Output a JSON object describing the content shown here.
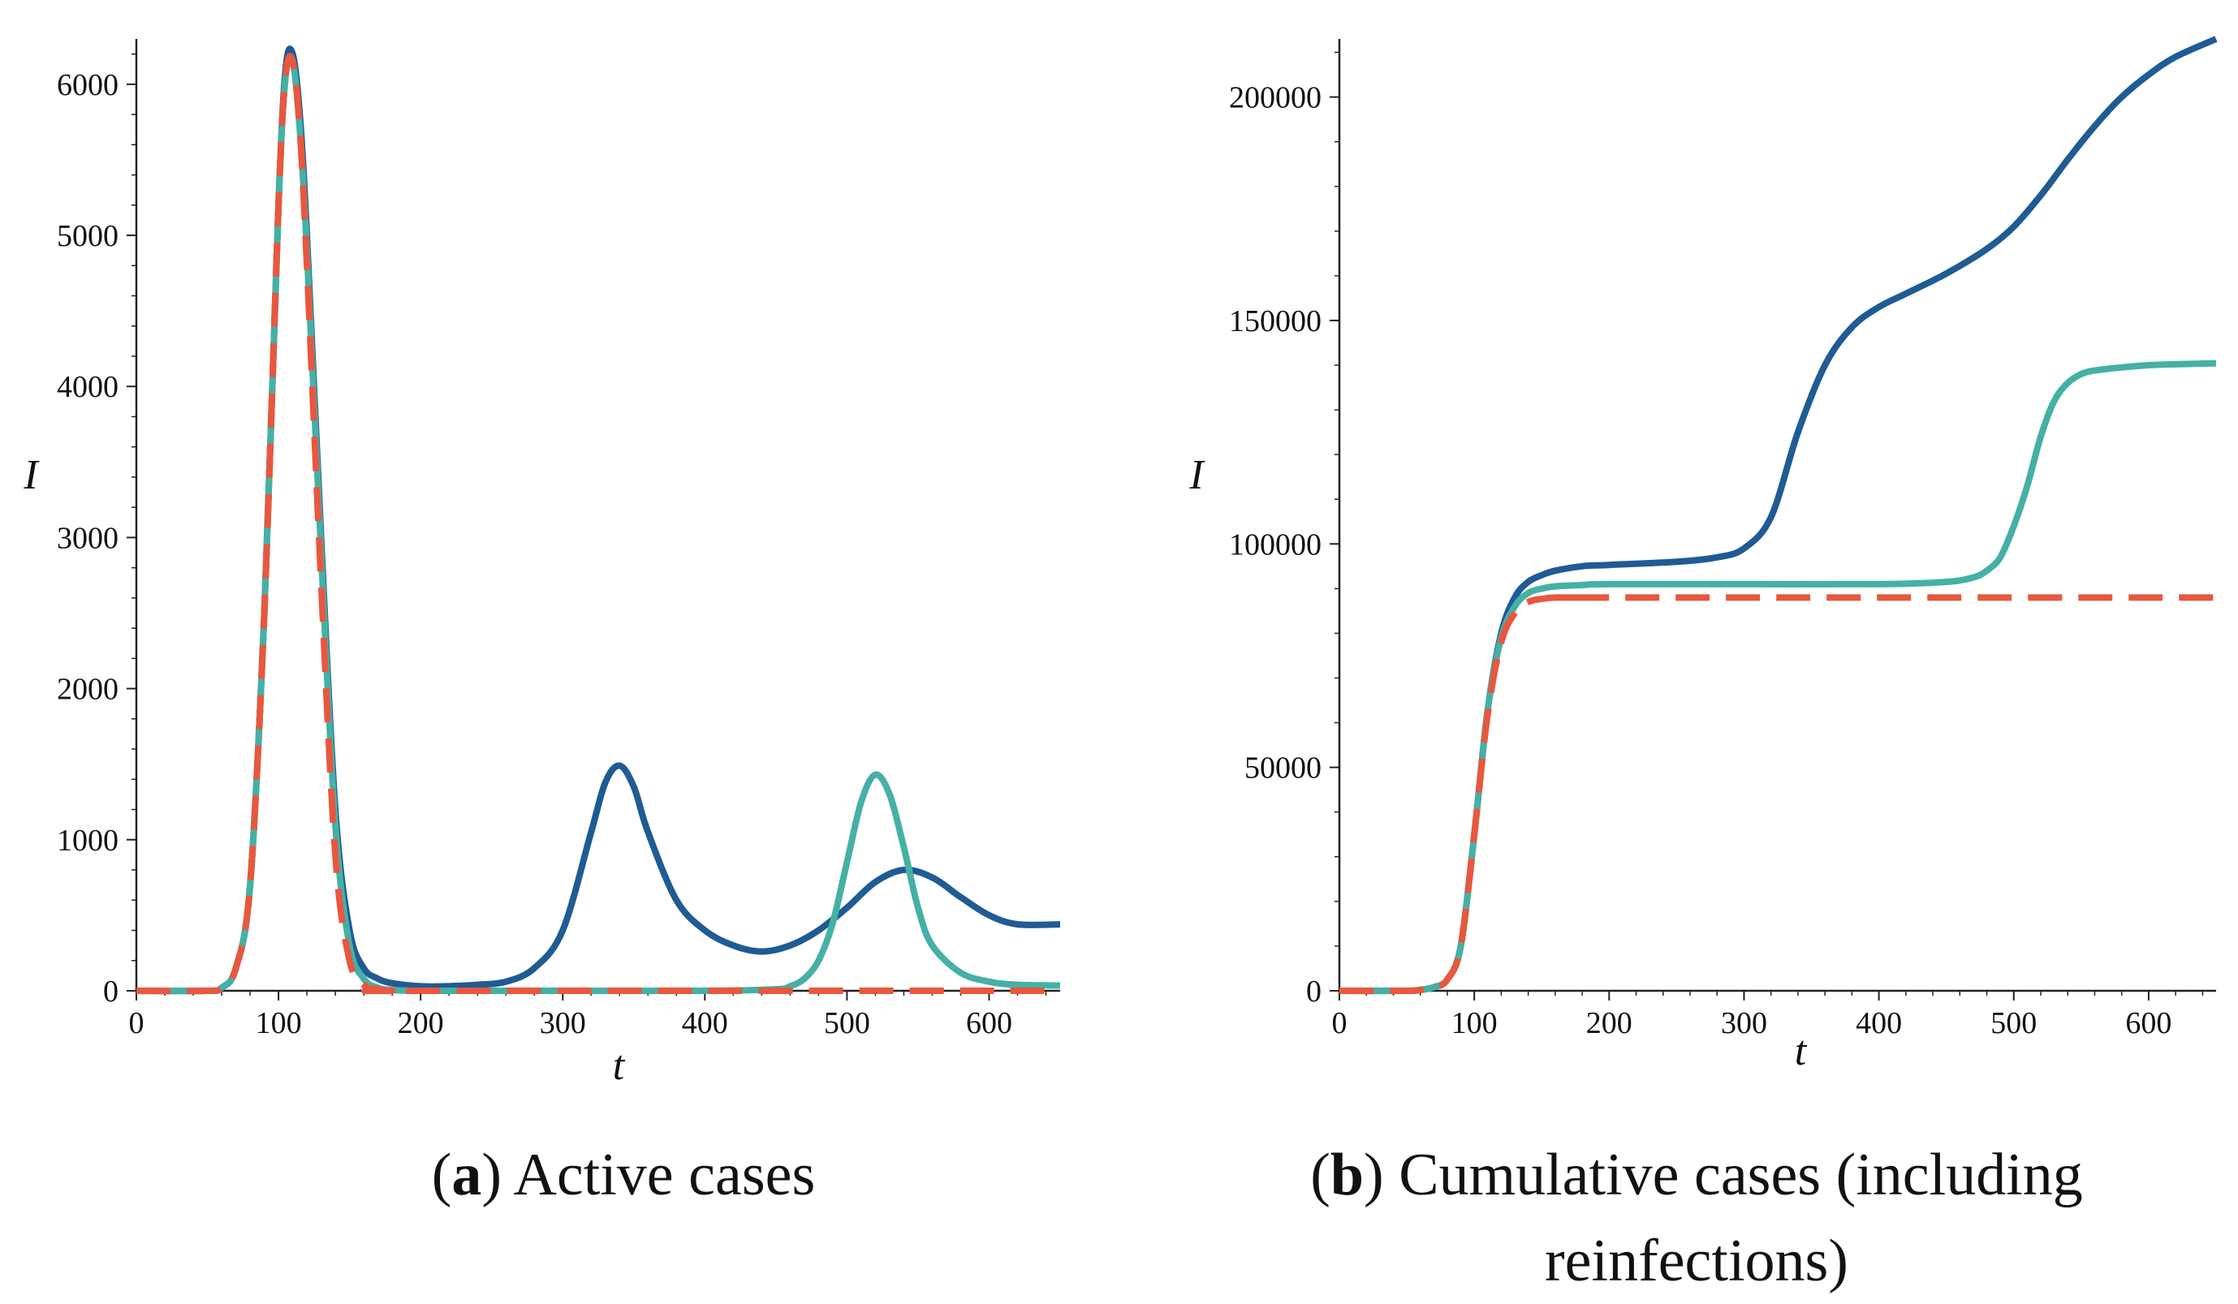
{
  "colors": {
    "dark_blue": "#1f5b94",
    "teal": "#45b0a6",
    "red": "#e8573e",
    "axis": "#222222"
  },
  "captions": [
    {
      "letter": "a",
      "text": "Active cases"
    },
    {
      "letter": "b",
      "text": "Cumulative cases (including reinfections)"
    }
  ],
  "chart_data": [
    {
      "type": "line",
      "title": "",
      "xlabel": "t",
      "ylabel": "I",
      "xlim": [
        0,
        650
      ],
      "ylim": [
        0,
        6300
      ],
      "xticks": [
        0,
        100,
        200,
        300,
        400,
        500,
        600
      ],
      "yticks": [
        0,
        1000,
        2000,
        3000,
        4000,
        5000,
        6000
      ],
      "grid": false,
      "series": [
        {
          "color": "dark_blue",
          "dash": "solid",
          "x": [
            0,
            50,
            60,
            70,
            80,
            90,
            100,
            105,
            110,
            115,
            120,
            130,
            140,
            150,
            160,
            170,
            180,
            200,
            220,
            240,
            260,
            280,
            300,
            320,
            330,
            340,
            350,
            360,
            380,
            400,
            420,
            440,
            460,
            480,
            500,
            520,
            540,
            560,
            580,
            600,
            620,
            650
          ],
          "y": [
            0,
            0,
            20,
            150,
            700,
            2500,
            5200,
            6100,
            6200,
            5800,
            5000,
            3000,
            1200,
            400,
            150,
            80,
            50,
            30,
            30,
            40,
            60,
            150,
            400,
            1050,
            1380,
            1490,
            1350,
            1050,
            600,
            400,
            300,
            260,
            300,
            400,
            550,
            720,
            800,
            750,
            620,
            500,
            440,
            440
          ]
        },
        {
          "color": "teal",
          "dash": "solid",
          "x": [
            0,
            50,
            60,
            70,
            80,
            90,
            100,
            105,
            110,
            115,
            120,
            130,
            140,
            150,
            160,
            170,
            180,
            200,
            250,
            300,
            400,
            450,
            460,
            470,
            480,
            490,
            500,
            510,
            520,
            530,
            540,
            550,
            560,
            580,
            600,
            620,
            650
          ],
          "y": [
            0,
            0,
            20,
            150,
            700,
            2500,
            5200,
            6050,
            6150,
            5700,
            4900,
            2900,
            1100,
            300,
            80,
            20,
            5,
            0,
            0,
            0,
            0,
            10,
            30,
            80,
            200,
            450,
            850,
            1250,
            1430,
            1300,
            950,
            550,
            300,
            120,
            60,
            40,
            35
          ]
        },
        {
          "color": "red",
          "dash": "dashed",
          "x": [
            0,
            50,
            60,
            70,
            80,
            90,
            100,
            105,
            110,
            115,
            120,
            130,
            140,
            150,
            160,
            170,
            180,
            200,
            650
          ],
          "y": [
            0,
            0,
            20,
            150,
            700,
            2500,
            5200,
            6050,
            6150,
            5700,
            4800,
            2700,
            900,
            200,
            40,
            10,
            0,
            0,
            0
          ]
        }
      ]
    },
    {
      "type": "line",
      "title": "",
      "xlabel": "t",
      "ylabel": "I",
      "xlim": [
        0,
        650
      ],
      "ylim": [
        0,
        213000
      ],
      "xticks": [
        0,
        100,
        200,
        300,
        400,
        500,
        600
      ],
      "yticks": [
        0,
        50000,
        100000,
        150000,
        200000
      ],
      "grid": false,
      "series": [
        {
          "color": "dark_blue",
          "dash": "solid",
          "x": [
            0,
            50,
            60,
            70,
            80,
            90,
            100,
            110,
            120,
            130,
            140,
            150,
            160,
            180,
            200,
            250,
            280,
            300,
            320,
            340,
            360,
            380,
            400,
            420,
            450,
            480,
            500,
            520,
            540,
            560,
            580,
            600,
            620,
            650
          ],
          "y": [
            0,
            0,
            200,
            800,
            2500,
            10000,
            35000,
            63000,
            80000,
            88000,
            91500,
            93000,
            94000,
            95000,
            95300,
            96000,
            97000,
            99000,
            106000,
            125000,
            140000,
            148500,
            153000,
            156000,
            160500,
            166000,
            171000,
            178000,
            186000,
            193500,
            200000,
            205000,
            209000,
            213000
          ]
        },
        {
          "color": "teal",
          "dash": "solid",
          "x": [
            0,
            50,
            60,
            70,
            80,
            90,
            100,
            110,
            120,
            130,
            140,
            150,
            160,
            180,
            200,
            300,
            400,
            450,
            470,
            480,
            490,
            500,
            510,
            520,
            530,
            540,
            550,
            560,
            580,
            600,
            620,
            650
          ],
          "y": [
            0,
            0,
            200,
            800,
            2500,
            10000,
            35000,
            63000,
            79000,
            86000,
            89000,
            90000,
            90500,
            90800,
            91000,
            91000,
            91000,
            91500,
            92500,
            94000,
            97000,
            104000,
            113000,
            124000,
            132000,
            136000,
            138000,
            138800,
            139500,
            140000,
            140200,
            140400
          ]
        },
        {
          "color": "red",
          "dash": "dashed",
          "x": [
            0,
            50,
            60,
            70,
            80,
            90,
            100,
            110,
            120,
            130,
            140,
            150,
            160,
            180,
            200,
            650
          ],
          "y": [
            0,
            0,
            200,
            800,
            2500,
            10000,
            35000,
            62000,
            78000,
            84500,
            87000,
            87700,
            88000,
            88000,
            88000,
            88000
          ]
        }
      ]
    }
  ]
}
